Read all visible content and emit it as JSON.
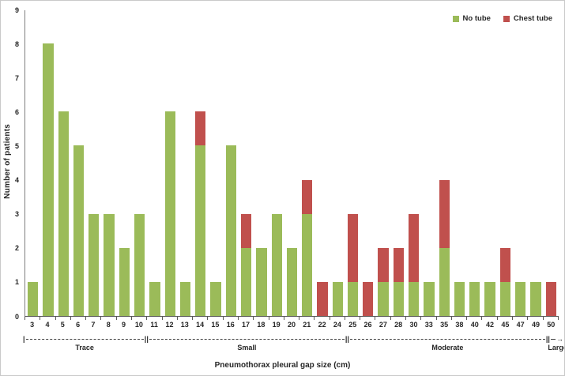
{
  "chart_data": {
    "type": "bar",
    "stacked": true,
    "title": "",
    "xlabel": "Pneumothorax pleural gap size (cm)",
    "ylabel": "Number of patients",
    "ylim": [
      0,
      9
    ],
    "ytick_step": 1,
    "grid": false,
    "legend_position": "top-right",
    "categories": [
      "3",
      "4",
      "5",
      "6",
      "7",
      "8",
      "9",
      "10",
      "11",
      "12",
      "13",
      "14",
      "15",
      "16",
      "17",
      "18",
      "19",
      "20",
      "21",
      "22",
      "24",
      "25",
      "26",
      "27",
      "28",
      "30",
      "33",
      "35",
      "38",
      "40",
      "42",
      "45",
      "47",
      "49",
      "50"
    ],
    "series": [
      {
        "name": "No tube",
        "color": "#9bbb59",
        "values": [
          1,
          8,
          6,
          5,
          3,
          3,
          2,
          3,
          1,
          6,
          1,
          5,
          1,
          5,
          2,
          2,
          3,
          2,
          3,
          0,
          1,
          1,
          0,
          1,
          1,
          1,
          1,
          2,
          1,
          1,
          1,
          1,
          1,
          1,
          0
        ]
      },
      {
        "name": "Chest tube",
        "color": "#c0504d",
        "values": [
          0,
          0,
          0,
          0,
          0,
          0,
          0,
          0,
          0,
          0,
          0,
          1,
          0,
          0,
          1,
          0,
          0,
          0,
          1,
          1,
          0,
          2,
          1,
          1,
          1,
          2,
          0,
          2,
          0,
          0,
          0,
          1,
          0,
          0,
          1
        ]
      }
    ],
    "size_groups": [
      {
        "label": "Trace",
        "from": "3",
        "to": "10"
      },
      {
        "label": "Small",
        "from": "11",
        "to": "24"
      },
      {
        "label": "Moderate",
        "from": "25",
        "to": "49"
      },
      {
        "label": "Large",
        "from": "50",
        "to": "50"
      }
    ]
  }
}
